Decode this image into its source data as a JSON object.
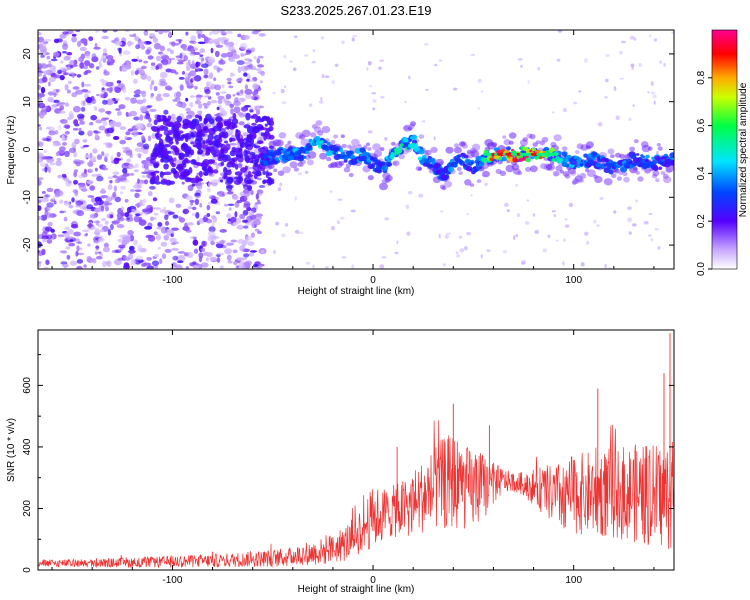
{
  "chart_data": [
    {
      "type": "heatmap",
      "title": "S233.2025.267.01.23.E19",
      "xlabel": "Height of straight line (km)",
      "ylabel": "Frequency (Hz)",
      "xlim": [
        -167,
        150
      ],
      "ylim": [
        -25,
        25
      ],
      "x_ticks": [
        -100,
        0,
        100
      ],
      "y_ticks": [
        -20,
        -10,
        0,
        10,
        20
      ],
      "x_tick_labels": [
        "-100",
        "0",
        "100"
      ],
      "y_tick_labels": [
        "-20",
        "-10",
        "0",
        "10",
        "20"
      ],
      "colorbar": {
        "label": "Normalized spectral amplitude",
        "range": [
          0,
          1
        ],
        "ticks": [
          0.0,
          0.2,
          0.4,
          0.6,
          0.8
        ],
        "tick_labels": [
          "0.0",
          "0.2",
          "0.4",
          "0.6",
          "0.8"
        ],
        "colors": [
          "#ffffff",
          "#7b00ff",
          "#0000ff",
          "#00ffff",
          "#00ff00",
          "#ffff00",
          "#ff0000",
          "#ff0080"
        ]
      },
      "signal_trace": {
        "x": [
          -55,
          -45,
          -35,
          -28,
          -22,
          -15,
          -10,
          -5,
          0,
          5,
          10,
          15,
          20,
          25,
          30,
          35,
          40,
          45,
          50,
          55,
          60,
          70,
          80,
          90,
          100,
          110,
          120,
          130,
          140,
          150
        ],
        "freq": [
          -2,
          -1,
          -1,
          2,
          0,
          -1,
          -2,
          -1,
          -3,
          -4,
          -1,
          1,
          2,
          -2,
          -3,
          -6,
          -3,
          -2,
          -4,
          -2,
          -1,
          -1,
          -1,
          -1,
          -3,
          -2,
          -4,
          -2,
          -3,
          -2
        ],
        "amplitude": [
          0.3,
          0.4,
          0.4,
          0.5,
          0.4,
          0.4,
          0.35,
          0.4,
          0.35,
          0.35,
          0.5,
          0.6,
          0.5,
          0.4,
          0.35,
          0.3,
          0.4,
          0.35,
          0.3,
          0.5,
          0.95,
          0.9,
          0.95,
          0.6,
          0.4,
          0.35,
          0.4,
          0.35,
          0.3,
          0.35
        ]
      },
      "noise_region": {
        "x_start": -167,
        "x_end": -55
      }
    },
    {
      "type": "line",
      "xlabel": "Height of straight line (km)",
      "ylabel": "SNR (10 * v/v)",
      "xlim": [
        -167,
        150
      ],
      "ylim": [
        0,
        780
      ],
      "x_ticks": [
        -100,
        0,
        100
      ],
      "y_ticks": [
        0,
        200,
        400,
        600
      ],
      "x_tick_labels": [
        "-100",
        "0",
        "100"
      ],
      "y_tick_labels": [
        "0",
        "200",
        "400",
        "600"
      ],
      "series": [
        {
          "name": "SNR",
          "color": "#ee3333",
          "envelope_x": [
            -167,
            -140,
            -110,
            -80,
            -60,
            -45,
            -35,
            -25,
            -15,
            -10,
            -5,
            0,
            5,
            10,
            15,
            20,
            25,
            30,
            35,
            40,
            45,
            50,
            55,
            60,
            65,
            70,
            75,
            80,
            85,
            90,
            95,
            100,
            110,
            120,
            130,
            140,
            150
          ],
          "mean": [
            22,
            22,
            25,
            30,
            35,
            40,
            50,
            60,
            80,
            110,
            140,
            170,
            180,
            190,
            200,
            220,
            240,
            260,
            280,
            290,
            270,
            260,
            270,
            280,
            290,
            285,
            280,
            270,
            260,
            240,
            240,
            245,
            250,
            250,
            250,
            240,
            240
          ],
          "spread": [
            12,
            14,
            18,
            22,
            25,
            30,
            35,
            45,
            55,
            70,
            85,
            100,
            90,
            85,
            95,
            110,
            120,
            140,
            150,
            160,
            140,
            130,
            110,
            70,
            40,
            30,
            40,
            60,
            80,
            100,
            120,
            130,
            140,
            150,
            160,
            170,
            180
          ],
          "peaks": [
            {
              "x": 148,
              "y": 770
            },
            {
              "x": 145,
              "y": 640
            },
            {
              "x": 40,
              "y": 540
            },
            {
              "x": 58,
              "y": 470
            },
            {
              "x": 12,
              "y": 400
            },
            {
              "x": 112,
              "y": 590
            }
          ]
        }
      ]
    }
  ]
}
